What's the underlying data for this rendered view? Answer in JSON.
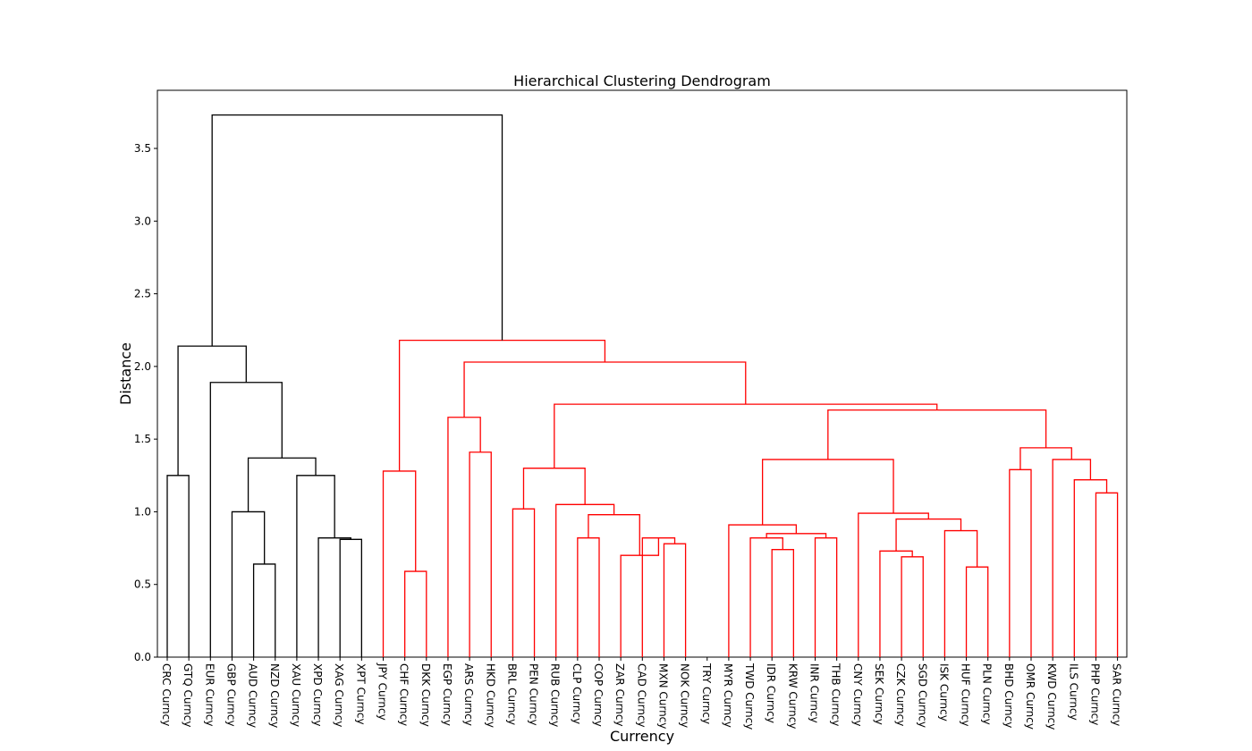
{
  "chart_data": {
    "type": "dendrogram",
    "title": "Hierarchical Clustering Dendrogram",
    "xlabel": "Currency",
    "ylabel": "Distance",
    "ylim": [
      0,
      3.9
    ],
    "yticks": [
      "0.0",
      "0.5",
      "1.0",
      "1.5",
      "2.0",
      "2.5",
      "3.0",
      "3.5"
    ],
    "grid": false,
    "colors": {
      "cluster_a": "#000000",
      "cluster_b": "#ff0000",
      "axis": "#000000"
    },
    "leaves": [
      "CRC Curncy",
      "GTQ Curncy",
      "EUR Curncy",
      "GBP Curncy",
      "AUD Curncy",
      "NZD Curncy",
      "XAU Curncy",
      "XPD Curncy",
      "XAG Curncy",
      "XPT Curncy",
      "JPY Curncy",
      "CHF Curncy",
      "DKK Curncy",
      "EGP Curncy",
      "ARS Curncy",
      "HKD Curncy",
      "BRL Curncy",
      "PEN Curncy",
      "RUB Curncy",
      "CLP Curncy",
      "COP Curncy",
      "ZAR Curncy",
      "CAD Curncy",
      "MXN Curncy",
      "NOK Curncy",
      "TRY Curncy",
      "MYR Curncy",
      "TWD Curncy",
      "IDR Curncy",
      "KRW Curncy",
      "INR Curncy",
      "THB Curncy",
      "CNY Curncy",
      "SEK Curncy",
      "CZK Curncy",
      "SGD Curncy",
      "ISK Curncy",
      "HUF Curncy",
      "PLN Curncy",
      "BHD Curncy",
      "OMR Curncy",
      "KWD Curncy",
      "ILS Curncy",
      "PHP Curncy",
      "SAR Curncy"
    ],
    "merges": [
      {
        "a": 0,
        "b": 1,
        "h": 1.25,
        "color": "cluster_a"
      },
      {
        "a": 4,
        "b": 5,
        "h": 0.64,
        "color": "cluster_a"
      },
      {
        "a": 3,
        "b": "n1",
        "h": 1.0,
        "color": "cluster_a"
      },
      {
        "a": 8,
        "b": 9,
        "h": 0.81,
        "color": "cluster_a"
      },
      {
        "a": 7,
        "b": "n3",
        "h": 0.82,
        "color": "cluster_a"
      },
      {
        "a": 6,
        "b": "n4",
        "h": 1.25,
        "color": "cluster_a"
      },
      {
        "a": "n2",
        "b": "n5",
        "h": 1.37,
        "color": "cluster_a"
      },
      {
        "a": 2,
        "b": "n6",
        "h": 1.89,
        "color": "cluster_a"
      },
      {
        "a": "n0",
        "b": "n7",
        "h": 2.14,
        "color": "cluster_a"
      },
      {
        "a": 11,
        "b": 12,
        "h": 0.59,
        "color": "cluster_b"
      },
      {
        "a": 10,
        "b": "n9",
        "h": 1.28,
        "color": "cluster_b"
      },
      {
        "a": 14,
        "b": 15,
        "h": 1.41,
        "color": "cluster_b"
      },
      {
        "a": 13,
        "b": "n11",
        "h": 1.65,
        "color": "cluster_b"
      },
      {
        "a": 16,
        "b": 17,
        "h": 1.02,
        "color": "cluster_b"
      },
      {
        "a": 19,
        "b": 20,
        "h": 0.82,
        "color": "cluster_b"
      },
      {
        "a": 23,
        "b": 24,
        "h": 0.78,
        "color": "cluster_b"
      },
      {
        "a": 22,
        "b": "n15",
        "h": 0.82,
        "color": "cluster_b"
      },
      {
        "a": 21,
        "b": "n16",
        "h": 0.7,
        "color": "cluster_b"
      },
      {
        "a": "n14",
        "b": "n17",
        "h": 0.98,
        "color": "cluster_b"
      },
      {
        "a": 18,
        "b": "n18",
        "h": 1.05,
        "color": "cluster_b"
      },
      {
        "a": "n13",
        "b": "n19",
        "h": 1.3,
        "color": "cluster_b"
      },
      {
        "a": 28,
        "b": 29,
        "h": 0.74,
        "color": "cluster_b"
      },
      {
        "a": 27,
        "b": "n21",
        "h": 0.82,
        "color": "cluster_b"
      },
      {
        "a": 30,
        "b": 31,
        "h": 0.82,
        "color": "cluster_b"
      },
      {
        "a": "n22",
        "b": "n23",
        "h": 0.85,
        "color": "cluster_b"
      },
      {
        "a": 26,
        "b": "n24",
        "h": 0.91,
        "color": "cluster_b"
      },
      {
        "a": 34,
        "b": 35,
        "h": 0.69,
        "color": "cluster_b"
      },
      {
        "a": 33,
        "b": "n26",
        "h": 0.73,
        "color": "cluster_b"
      },
      {
        "a": 37,
        "b": 38,
        "h": 0.62,
        "color": "cluster_b"
      },
      {
        "a": 36,
        "b": "n28",
        "h": 0.87,
        "color": "cluster_b"
      },
      {
        "a": "n27",
        "b": "n29",
        "h": 0.95,
        "color": "cluster_b"
      },
      {
        "a": 32,
        "b": "n30",
        "h": 0.99,
        "color": "cluster_b"
      },
      {
        "a": "n25",
        "b": "n31",
        "h": 1.36,
        "color": "cluster_b"
      },
      {
        "a": 39,
        "b": 40,
        "h": 1.29,
        "color": "cluster_b"
      },
      {
        "a": 43,
        "b": 44,
        "h": 1.13,
        "color": "cluster_b"
      },
      {
        "a": 42,
        "b": "n34",
        "h": 1.22,
        "color": "cluster_b"
      },
      {
        "a": 41,
        "b": "n35",
        "h": 1.36,
        "color": "cluster_b"
      },
      {
        "a": "n33",
        "b": "n36",
        "h": 1.44,
        "color": "cluster_b"
      },
      {
        "a": "n32",
        "b": "n37",
        "h": 1.7,
        "color": "cluster_b"
      },
      {
        "a": "n20",
        "b": "n38",
        "h": 1.74,
        "color": "cluster_b"
      },
      {
        "a": "n12",
        "b": "n39",
        "h": 2.03,
        "color": "cluster_b"
      },
      {
        "a": "n10",
        "b": "n40",
        "h": 2.18,
        "color": "cluster_b"
      },
      {
        "a": "n8",
        "b": "n41",
        "h": 3.73,
        "color": "cluster_a"
      }
    ]
  }
}
